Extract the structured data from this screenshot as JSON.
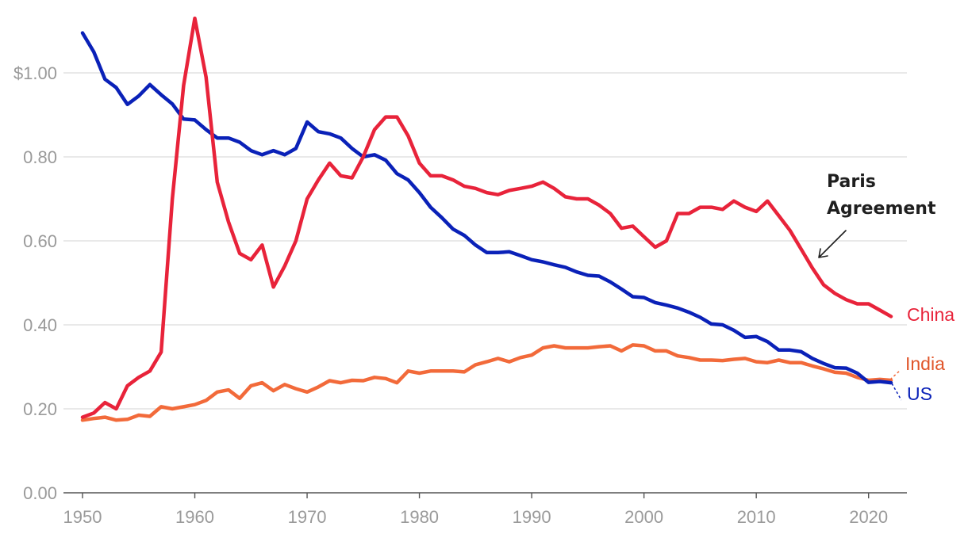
{
  "chart_data": {
    "type": "line",
    "title": "",
    "xlabel": "",
    "ylabel": "",
    "xlim": [
      1950,
      2022
    ],
    "ylim": [
      0,
      1.13
    ],
    "grid": true,
    "x_ticks": [
      {
        "value": 1950,
        "label": "1950"
      },
      {
        "value": 1960,
        "label": "1960"
      },
      {
        "value": 1970,
        "label": "1970"
      },
      {
        "value": 1980,
        "label": "1980"
      },
      {
        "value": 1990,
        "label": "1990"
      },
      {
        "value": 2000,
        "label": "2000"
      },
      {
        "value": 2010,
        "label": "2010"
      },
      {
        "value": 2020,
        "label": "2020"
      }
    ],
    "y_ticks": [
      {
        "value": 0.0,
        "label": "0.00"
      },
      {
        "value": 0.2,
        "label": "0.20"
      },
      {
        "value": 0.4,
        "label": "0.40"
      },
      {
        "value": 0.6,
        "label": "0.60"
      },
      {
        "value": 0.8,
        "label": "0.80"
      },
      {
        "value": 1.0,
        "label": "$1.00"
      }
    ],
    "series": [
      {
        "name": "China",
        "color": "#e8233a",
        "x": [
          1950,
          1951,
          1952,
          1953,
          1954,
          1955,
          1956,
          1957,
          1958,
          1959,
          1960,
          1961,
          1962,
          1963,
          1964,
          1965,
          1966,
          1967,
          1968,
          1969,
          1970,
          1971,
          1972,
          1973,
          1974,
          1975,
          1976,
          1977,
          1978,
          1979,
          1980,
          1981,
          1982,
          1983,
          1984,
          1985,
          1986,
          1987,
          1988,
          1989,
          1990,
          1991,
          1992,
          1993,
          1994,
          1995,
          1996,
          1997,
          1998,
          1999,
          2000,
          2001,
          2002,
          2003,
          2004,
          2005,
          2006,
          2007,
          2008,
          2009,
          2010,
          2011,
          2012,
          2013,
          2014,
          2015,
          2016,
          2017,
          2018,
          2019,
          2020,
          2021,
          2022
        ],
        "values": [
          0.18,
          0.19,
          0.215,
          0.2,
          0.255,
          0.275,
          0.29,
          0.335,
          0.7,
          0.97,
          1.13,
          0.99,
          0.74,
          0.645,
          0.57,
          0.555,
          0.59,
          0.49,
          0.54,
          0.6,
          0.7,
          0.745,
          0.785,
          0.755,
          0.75,
          0.8,
          0.865,
          0.895,
          0.895,
          0.85,
          0.785,
          0.755,
          0.755,
          0.745,
          0.73,
          0.725,
          0.715,
          0.71,
          0.72,
          0.725,
          0.73,
          0.74,
          0.725,
          0.705,
          0.7,
          0.7,
          0.685,
          0.665,
          0.63,
          0.635,
          0.61,
          0.585,
          0.6,
          0.665,
          0.665,
          0.68,
          0.68,
          0.675,
          0.695,
          0.68,
          0.67,
          0.695,
          0.66,
          0.625,
          0.58,
          0.535,
          0.495,
          0.475,
          0.46,
          0.45,
          0.45,
          0.435,
          0.42
        ]
      },
      {
        "name": "India",
        "color": "#f26a3a",
        "x": [
          1950,
          1951,
          1952,
          1953,
          1954,
          1955,
          1956,
          1957,
          1958,
          1959,
          1960,
          1961,
          1962,
          1963,
          1964,
          1965,
          1966,
          1967,
          1968,
          1969,
          1970,
          1971,
          1972,
          1973,
          1974,
          1975,
          1976,
          1977,
          1978,
          1979,
          1980,
          1981,
          1982,
          1983,
          1984,
          1985,
          1986,
          1987,
          1988,
          1989,
          1990,
          1991,
          1992,
          1993,
          1994,
          1995,
          1996,
          1997,
          1998,
          1999,
          2000,
          2001,
          2002,
          2003,
          2004,
          2005,
          2006,
          2007,
          2008,
          2009,
          2010,
          2011,
          2012,
          2013,
          2014,
          2015,
          2016,
          2017,
          2018,
          2019,
          2020,
          2021,
          2022
        ],
        "values": [
          0.173,
          0.177,
          0.18,
          0.173,
          0.175,
          0.185,
          0.182,
          0.205,
          0.2,
          0.205,
          0.21,
          0.22,
          0.24,
          0.245,
          0.225,
          0.255,
          0.262,
          0.243,
          0.258,
          0.248,
          0.24,
          0.252,
          0.267,
          0.262,
          0.268,
          0.267,
          0.275,
          0.272,
          0.262,
          0.29,
          0.285,
          0.29,
          0.29,
          0.29,
          0.288,
          0.305,
          0.312,
          0.32,
          0.312,
          0.322,
          0.328,
          0.345,
          0.35,
          0.345,
          0.345,
          0.345,
          0.348,
          0.35,
          0.338,
          0.352,
          0.35,
          0.338,
          0.338,
          0.326,
          0.322,
          0.316,
          0.316,
          0.315,
          0.318,
          0.32,
          0.312,
          0.31,
          0.316,
          0.31,
          0.31,
          0.302,
          0.295,
          0.287,
          0.285,
          0.275,
          0.268,
          0.27,
          0.268
        ]
      },
      {
        "name": "US",
        "color": "#0a21b8",
        "x": [
          1950,
          1951,
          1952,
          1953,
          1954,
          1955,
          1956,
          1957,
          1958,
          1959,
          1960,
          1961,
          1962,
          1963,
          1964,
          1965,
          1966,
          1967,
          1968,
          1969,
          1970,
          1971,
          1972,
          1973,
          1974,
          1975,
          1976,
          1977,
          1978,
          1979,
          1980,
          1981,
          1982,
          1983,
          1984,
          1985,
          1986,
          1987,
          1988,
          1989,
          1990,
          1991,
          1992,
          1993,
          1994,
          1995,
          1996,
          1997,
          1998,
          1999,
          2000,
          2001,
          2002,
          2003,
          2004,
          2005,
          2006,
          2007,
          2008,
          2009,
          2010,
          2011,
          2012,
          2013,
          2014,
          2015,
          2016,
          2017,
          2018,
          2019,
          2020,
          2021,
          2022
        ],
        "values": [
          1.095,
          1.05,
          0.985,
          0.965,
          0.925,
          0.945,
          0.972,
          0.948,
          0.926,
          0.89,
          0.888,
          0.865,
          0.845,
          0.845,
          0.835,
          0.815,
          0.805,
          0.815,
          0.805,
          0.82,
          0.883,
          0.86,
          0.855,
          0.845,
          0.82,
          0.8,
          0.805,
          0.792,
          0.76,
          0.745,
          0.715,
          0.68,
          0.655,
          0.628,
          0.613,
          0.59,
          0.572,
          0.572,
          0.574,
          0.565,
          0.555,
          0.55,
          0.543,
          0.537,
          0.526,
          0.518,
          0.516,
          0.502,
          0.485,
          0.467,
          0.465,
          0.453,
          0.447,
          0.44,
          0.43,
          0.418,
          0.402,
          0.4,
          0.387,
          0.37,
          0.372,
          0.36,
          0.34,
          0.34,
          0.336,
          0.32,
          0.308,
          0.298,
          0.297,
          0.285,
          0.263,
          0.265,
          0.262
        ]
      }
    ],
    "annotations": [
      {
        "id": "paris",
        "lines": [
          "Paris",
          "Agreement"
        ],
        "points_to_x": 2015,
        "points_to_y": 0.55
      }
    ]
  }
}
